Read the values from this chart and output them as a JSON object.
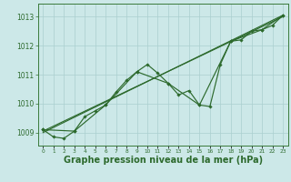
{
  "background_color": "#cce8e8",
  "grid_color": "#aacfcf",
  "line_color": "#2d6a2d",
  "xlabel": "Graphe pression niveau de la mer (hPa)",
  "xlabel_fontsize": 7.0,
  "ylabel_ticks": [
    1009,
    1010,
    1011,
    1012,
    1013
  ],
  "xlim": [
    -0.5,
    23.5
  ],
  "ylim": [
    1008.55,
    1013.45
  ],
  "x_ticks": [
    0,
    1,
    2,
    3,
    4,
    5,
    6,
    7,
    8,
    9,
    10,
    11,
    12,
    13,
    14,
    15,
    16,
    17,
    18,
    19,
    20,
    21,
    22,
    23
  ],
  "series_hourly": {
    "x": [
      0,
      1,
      2,
      3,
      4,
      5,
      6,
      7,
      8,
      9,
      10,
      11,
      12,
      13,
      14,
      15,
      16,
      17,
      18,
      19,
      20,
      21,
      22,
      23
    ],
    "y": [
      1009.1,
      1008.85,
      1008.8,
      1009.05,
      1009.55,
      1009.75,
      1009.95,
      1010.4,
      1010.8,
      1011.1,
      1011.35,
      1011.05,
      1010.7,
      1010.3,
      1010.45,
      1009.95,
      1009.9,
      1011.35,
      1012.15,
      1012.2,
      1012.5,
      1012.55,
      1012.7,
      1013.05
    ]
  },
  "series_synoptic": {
    "x": [
      0,
      3,
      6,
      9,
      12,
      15,
      18,
      21,
      23
    ],
    "y": [
      1009.1,
      1009.05,
      1009.95,
      1011.1,
      1010.7,
      1009.95,
      1012.15,
      1012.55,
      1013.05
    ]
  },
  "series_linear": {
    "x": [
      0,
      23
    ],
    "y": [
      1009.0,
      1013.05
    ]
  },
  "series_linear2": {
    "x": [
      0,
      23
    ],
    "y": [
      1009.05,
      1013.0
    ]
  }
}
